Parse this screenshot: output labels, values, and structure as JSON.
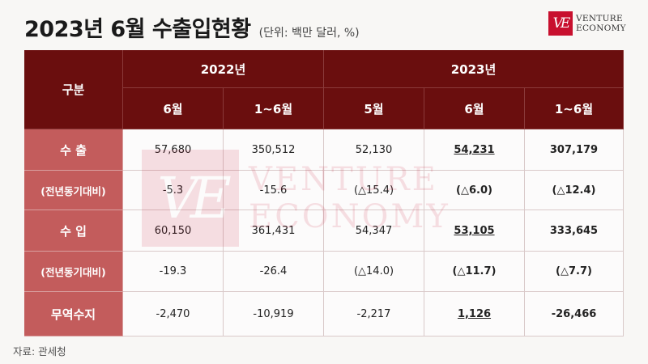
{
  "header": {
    "title": "2023년 6월 수출입현황",
    "unit": "(단위: 백만 달러, %)"
  },
  "logo": {
    "mark": "VE",
    "line1": "VENTURE",
    "line2": "ECONOMY",
    "brand_color": "#c8102e"
  },
  "table": {
    "corner_label": "구분",
    "year_2022": "2022년",
    "year_2023": "2023년",
    "sub_headers": [
      "6월",
      "1~6월",
      "5월",
      "6월",
      "1~6월"
    ],
    "rows": [
      {
        "label": "수 출",
        "values": [
          "57,680",
          "350,512",
          "52,130",
          "54,231",
          "307,179"
        ]
      },
      {
        "label": "(전년동기대비)",
        "values": [
          "-5.3",
          "-15.6",
          "(△15.4)",
          "(△6.0)",
          "(△12.4)"
        ]
      },
      {
        "label": "수 입",
        "values": [
          "60,150",
          "361,431",
          "54,347",
          "53,105",
          "333,645"
        ]
      },
      {
        "label": "(전년동기대비)",
        "values": [
          "-19.3",
          "-26.4",
          "(△14.0)",
          "(△11.7)",
          "(△7.7)"
        ]
      },
      {
        "label": "무역수지",
        "values": [
          "-2,470",
          "-10,919",
          "-2,217",
          "1,126",
          "-26,466"
        ]
      }
    ],
    "header_color": "#6a0e0e",
    "rowhead_color": "#c35c5c"
  },
  "watermark": {
    "mark": "VE",
    "line1": "VENTURE",
    "line2": "ECONOMY"
  },
  "source": "자료: 관세청"
}
